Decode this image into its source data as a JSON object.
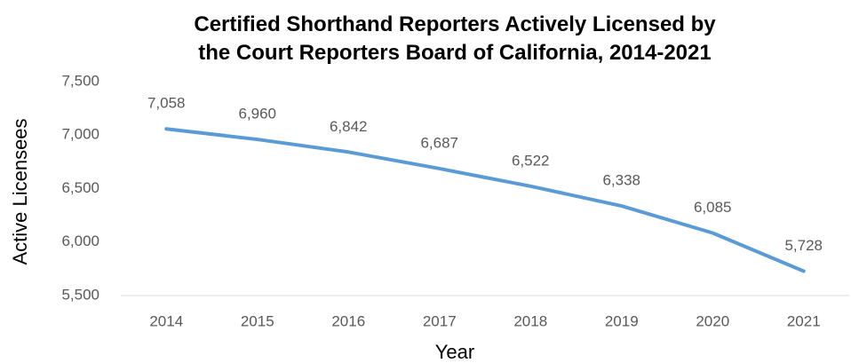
{
  "chart_data": {
    "type": "line",
    "title": "Certified Shorthand Reporters Actively Licensed by the Court Reporters Board of California, 2014-2021",
    "x_label": "Year",
    "y_label": "Active Licensees",
    "categories": [
      "2014",
      "2015",
      "2016",
      "2017",
      "2018",
      "2019",
      "2020",
      "2021"
    ],
    "series": [
      {
        "name": "Active Licensees",
        "color": "#5b9bd5",
        "values": [
          7058,
          6960,
          6842,
          6687,
          6522,
          6338,
          6085,
          5728
        ],
        "value_labels": [
          "7,058",
          "6,960",
          "6,842",
          "6,687",
          "6,522",
          "6,338",
          "6,085",
          "5,728"
        ]
      }
    ],
    "ylim": [
      5500,
      7500
    ],
    "yticks": [
      {
        "value": 5500,
        "label": "5,500"
      },
      {
        "value": 6000,
        "label": "6,000"
      },
      {
        "value": 6500,
        "label": "6,500"
      },
      {
        "value": 7000,
        "label": "7,000"
      },
      {
        "value": 7500,
        "label": "7,500"
      }
    ],
    "grid": false
  }
}
